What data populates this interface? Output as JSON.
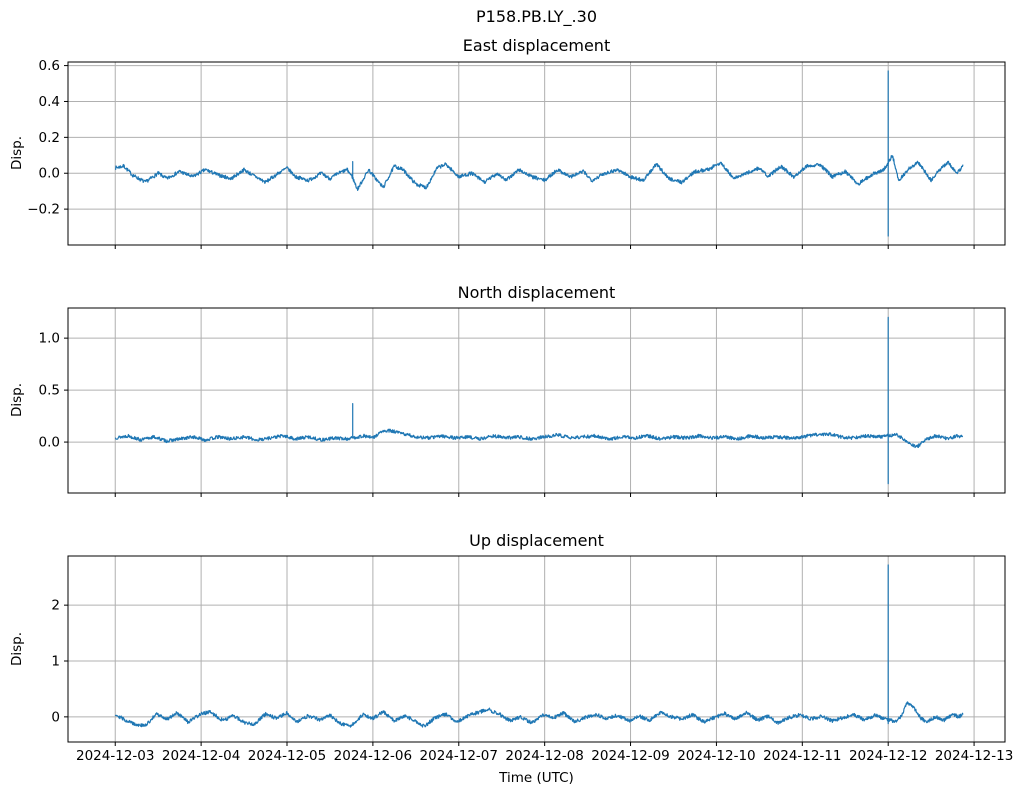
{
  "figure": {
    "title": "P158.PB.LY_.30",
    "background": "#ffffff"
  },
  "x_axis": {
    "label": "Time (UTC)",
    "lim_days": [
      -0.55,
      10.36
    ],
    "ticks": [
      {
        "day": 0,
        "label": "2024-12-03"
      },
      {
        "day": 1,
        "label": "2024-12-04"
      },
      {
        "day": 2,
        "label": "2024-12-05"
      },
      {
        "day": 3,
        "label": "2024-12-06"
      },
      {
        "day": 4,
        "label": "2024-12-07"
      },
      {
        "day": 5,
        "label": "2024-12-08"
      },
      {
        "day": 6,
        "label": "2024-12-09"
      },
      {
        "day": 7,
        "label": "2024-12-10"
      },
      {
        "day": 8,
        "label": "2024-12-11"
      },
      {
        "day": 9,
        "label": "2024-12-12"
      },
      {
        "day": 10,
        "label": "2024-12-13"
      }
    ]
  },
  "style": {
    "line_color": "#1f77b4",
    "grid_color": "#b0b0b0",
    "spine_color": "#000000",
    "line_width": 1.2
  },
  "chart_data": [
    {
      "type": "line",
      "title": "East displacement",
      "ylabel": "Disp.",
      "grid": true,
      "ylim": [
        -0.4,
        0.62
      ],
      "yticks": [
        {
          "v": 0.6,
          "label": "0.6"
        },
        {
          "v": 0.4,
          "label": "0.4"
        },
        {
          "v": 0.2,
          "label": "0.2"
        },
        {
          "v": 0.0,
          "label": "0.0"
        },
        {
          "v": -0.2,
          "label": "−0.2"
        }
      ],
      "t_range": [
        0,
        9.87
      ],
      "noise_amp": 0.01,
      "seed": 7,
      "envelope": [
        [
          0,
          0.03
        ],
        [
          0.1,
          0.04
        ],
        [
          0.2,
          -0.01
        ],
        [
          0.35,
          -0.05
        ],
        [
          0.5,
          0.0
        ],
        [
          0.6,
          -0.03
        ],
        [
          0.75,
          0.01
        ],
        [
          0.9,
          -0.02
        ],
        [
          1.05,
          0.02
        ],
        [
          1.2,
          -0.01
        ],
        [
          1.35,
          -0.03
        ],
        [
          1.5,
          0.02
        ],
        [
          1.6,
          -0.01
        ],
        [
          1.75,
          -0.05
        ],
        [
          1.9,
          0.0
        ],
        [
          2.0,
          0.03
        ],
        [
          2.1,
          -0.02
        ],
        [
          2.25,
          -0.04
        ],
        [
          2.4,
          0.0
        ],
        [
          2.5,
          -0.03
        ],
        [
          2.6,
          0.0
        ],
        [
          2.7,
          0.02
        ],
        [
          2.76,
          -0.02
        ],
        [
          2.82,
          -0.09
        ],
        [
          2.95,
          0.02
        ],
        [
          3.05,
          -0.04
        ],
        [
          3.12,
          -0.08
        ],
        [
          3.25,
          0.04
        ],
        [
          3.35,
          0.02
        ],
        [
          3.5,
          -0.06
        ],
        [
          3.62,
          -0.08
        ],
        [
          3.75,
          0.03
        ],
        [
          3.85,
          0.05
        ],
        [
          4.0,
          -0.02
        ],
        [
          4.15,
          0.0
        ],
        [
          4.3,
          -0.05
        ],
        [
          4.45,
          0.0
        ],
        [
          4.55,
          -0.04
        ],
        [
          4.7,
          0.02
        ],
        [
          4.85,
          -0.02
        ],
        [
          5.0,
          -0.04
        ],
        [
          5.15,
          0.02
        ],
        [
          5.3,
          -0.02
        ],
        [
          5.45,
          0.01
        ],
        [
          5.55,
          -0.04
        ],
        [
          5.7,
          0.0
        ],
        [
          5.85,
          0.02
        ],
        [
          6.0,
          -0.02
        ],
        [
          6.15,
          -0.04
        ],
        [
          6.3,
          0.05
        ],
        [
          6.45,
          -0.03
        ],
        [
          6.6,
          -0.05
        ],
        [
          6.75,
          0.01
        ],
        [
          6.9,
          0.02
        ],
        [
          7.05,
          0.06
        ],
        [
          7.2,
          -0.03
        ],
        [
          7.35,
          0.0
        ],
        [
          7.5,
          0.03
        ],
        [
          7.6,
          -0.02
        ],
        [
          7.75,
          0.04
        ],
        [
          7.9,
          -0.02
        ],
        [
          8.05,
          0.04
        ],
        [
          8.2,
          0.05
        ],
        [
          8.35,
          -0.02
        ],
        [
          8.5,
          0.01
        ],
        [
          8.65,
          -0.06
        ],
        [
          8.8,
          -0.01
        ],
        [
          8.95,
          0.02
        ],
        [
          9.05,
          0.1
        ],
        [
          9.12,
          -0.04
        ],
        [
          9.25,
          0.03
        ],
        [
          9.35,
          0.06
        ],
        [
          9.5,
          -0.04
        ],
        [
          9.6,
          0.02
        ],
        [
          9.7,
          0.06
        ],
        [
          9.8,
          0.0
        ],
        [
          9.87,
          0.04
        ]
      ],
      "spikes": [
        {
          "day": 2.765,
          "peak": 0.065,
          "trough": null
        },
        {
          "day": 9.0,
          "peak": 0.57,
          "trough": -0.35
        }
      ]
    },
    {
      "type": "line",
      "title": "North displacement",
      "ylabel": "Disp.",
      "grid": true,
      "ylim": [
        -0.49,
        1.29
      ],
      "yticks": [
        {
          "v": 1.0,
          "label": "1.0"
        },
        {
          "v": 0.5,
          "label": "0.5"
        },
        {
          "v": 0.0,
          "label": "0.0"
        }
      ],
      "t_range": [
        0,
        9.87
      ],
      "noise_amp": 0.016,
      "seed": 13,
      "envelope": [
        [
          0,
          0.04
        ],
        [
          0.15,
          0.06
        ],
        [
          0.3,
          0.02
        ],
        [
          0.45,
          0.05
        ],
        [
          0.6,
          0.01
        ],
        [
          0.75,
          0.03
        ],
        [
          0.9,
          0.05
        ],
        [
          1.05,
          0.02
        ],
        [
          1.2,
          0.05
        ],
        [
          1.35,
          0.03
        ],
        [
          1.5,
          0.05
        ],
        [
          1.65,
          0.02
        ],
        [
          1.8,
          0.04
        ],
        [
          1.95,
          0.06
        ],
        [
          2.1,
          0.03
        ],
        [
          2.25,
          0.05
        ],
        [
          2.4,
          0.02
        ],
        [
          2.55,
          0.04
        ],
        [
          2.7,
          0.03
        ],
        [
          2.76,
          0.04
        ],
        [
          2.9,
          0.06
        ],
        [
          3.0,
          0.04
        ],
        [
          3.1,
          0.1
        ],
        [
          3.2,
          0.11
        ],
        [
          3.35,
          0.08
        ],
        [
          3.5,
          0.05
        ],
        [
          3.65,
          0.04
        ],
        [
          3.8,
          0.06
        ],
        [
          3.95,
          0.04
        ],
        [
          4.1,
          0.05
        ],
        [
          4.25,
          0.03
        ],
        [
          4.4,
          0.06
        ],
        [
          4.55,
          0.04
        ],
        [
          4.7,
          0.05
        ],
        [
          4.85,
          0.03
        ],
        [
          5.0,
          0.05
        ],
        [
          5.15,
          0.07
        ],
        [
          5.3,
          0.04
        ],
        [
          5.45,
          0.05
        ],
        [
          5.6,
          0.06
        ],
        [
          5.75,
          0.03
        ],
        [
          5.9,
          0.05
        ],
        [
          6.05,
          0.04
        ],
        [
          6.2,
          0.06
        ],
        [
          6.35,
          0.03
        ],
        [
          6.5,
          0.05
        ],
        [
          6.65,
          0.04
        ],
        [
          6.8,
          0.06
        ],
        [
          6.95,
          0.04
        ],
        [
          7.1,
          0.05
        ],
        [
          7.25,
          0.03
        ],
        [
          7.4,
          0.06
        ],
        [
          7.55,
          0.04
        ],
        [
          7.7,
          0.05
        ],
        [
          7.85,
          0.04
        ],
        [
          8.0,
          0.05
        ],
        [
          8.15,
          0.07
        ],
        [
          8.3,
          0.08
        ],
        [
          8.45,
          0.05
        ],
        [
          8.6,
          0.04
        ],
        [
          8.75,
          0.06
        ],
        [
          8.9,
          0.05
        ],
        [
          9.0,
          0.06
        ],
        [
          9.1,
          0.07
        ],
        [
          9.2,
          0.02
        ],
        [
          9.33,
          -0.05
        ],
        [
          9.45,
          0.03
        ],
        [
          9.55,
          0.06
        ],
        [
          9.7,
          0.03
        ],
        [
          9.8,
          0.06
        ],
        [
          9.87,
          0.05
        ]
      ],
      "spikes": [
        {
          "day": 2.765,
          "peak": 0.37,
          "trough": null
        },
        {
          "day": 9.0,
          "peak": 1.2,
          "trough": -0.4
        }
      ]
    },
    {
      "type": "line",
      "title": "Up displacement",
      "ylabel": "Disp.",
      "grid": true,
      "ylim": [
        -0.45,
        2.88
      ],
      "yticks": [
        {
          "v": 2,
          "label": "2"
        },
        {
          "v": 1,
          "label": "1"
        },
        {
          "v": 0,
          "label": "0"
        }
      ],
      "t_range": [
        0,
        9.87
      ],
      "noise_amp": 0.032,
      "seed": 29,
      "envelope": [
        [
          0,
          0.05
        ],
        [
          0.12,
          -0.06
        ],
        [
          0.25,
          -0.14
        ],
        [
          0.35,
          -0.16
        ],
        [
          0.48,
          0.05
        ],
        [
          0.6,
          -0.04
        ],
        [
          0.72,
          0.07
        ],
        [
          0.85,
          -0.1
        ],
        [
          0.98,
          0.04
        ],
        [
          1.1,
          0.09
        ],
        [
          1.25,
          -0.06
        ],
        [
          1.38,
          0.02
        ],
        [
          1.5,
          -0.1
        ],
        [
          1.62,
          -0.13
        ],
        [
          1.75,
          0.05
        ],
        [
          1.88,
          -0.03
        ],
        [
          2.0,
          0.07
        ],
        [
          2.12,
          -0.09
        ],
        [
          2.25,
          0.02
        ],
        [
          2.38,
          -0.05
        ],
        [
          2.5,
          0.03
        ],
        [
          2.62,
          -0.12
        ],
        [
          2.75,
          -0.16
        ],
        [
          2.88,
          0.04
        ],
        [
          3.0,
          -0.03
        ],
        [
          3.12,
          0.09
        ],
        [
          3.25,
          -0.07
        ],
        [
          3.38,
          0.02
        ],
        [
          3.5,
          -0.09
        ],
        [
          3.6,
          -0.17
        ],
        [
          3.72,
          -0.02
        ],
        [
          3.85,
          0.05
        ],
        [
          3.98,
          -0.09
        ],
        [
          4.1,
          0.01
        ],
        [
          4.22,
          0.08
        ],
        [
          4.35,
          0.13
        ],
        [
          4.48,
          0.04
        ],
        [
          4.6,
          -0.07
        ],
        [
          4.72,
          0.0
        ],
        [
          4.85,
          -0.11
        ],
        [
          4.98,
          0.03
        ],
        [
          5.1,
          -0.02
        ],
        [
          5.22,
          0.07
        ],
        [
          5.35,
          -0.09
        ],
        [
          5.48,
          -0.01
        ],
        [
          5.6,
          0.05
        ],
        [
          5.72,
          -0.04
        ],
        [
          5.85,
          0.03
        ],
        [
          5.98,
          -0.07
        ],
        [
          6.1,
          0.01
        ],
        [
          6.22,
          -0.06
        ],
        [
          6.35,
          0.08
        ],
        [
          6.48,
          0.0
        ],
        [
          6.6,
          -0.04
        ],
        [
          6.72,
          0.04
        ],
        [
          6.85,
          -0.09
        ],
        [
          6.98,
          -0.01
        ],
        [
          7.1,
          0.06
        ],
        [
          7.22,
          -0.04
        ],
        [
          7.35,
          0.07
        ],
        [
          7.48,
          -0.06
        ],
        [
          7.6,
          0.01
        ],
        [
          7.72,
          -0.11
        ],
        [
          7.85,
          -0.01
        ],
        [
          7.98,
          0.04
        ],
        [
          8.1,
          -0.04
        ],
        [
          8.22,
          0.01
        ],
        [
          8.35,
          -0.07
        ],
        [
          8.48,
          -0.01
        ],
        [
          8.6,
          0.04
        ],
        [
          8.72,
          -0.05
        ],
        [
          8.85,
          0.03
        ],
        [
          8.95,
          -0.03
        ],
        [
          9.0,
          -0.05
        ],
        [
          9.08,
          -0.08
        ],
        [
          9.15,
          0.0
        ],
        [
          9.22,
          0.24
        ],
        [
          9.28,
          0.2
        ],
        [
          9.38,
          -0.02
        ],
        [
          9.45,
          -0.1
        ],
        [
          9.55,
          0.0
        ],
        [
          9.65,
          -0.06
        ],
        [
          9.75,
          0.05
        ],
        [
          9.82,
          0.0
        ],
        [
          9.87,
          0.04
        ]
      ],
      "spikes": [
        {
          "day": 9.0,
          "peak": 2.72,
          "trough": -0.12
        }
      ]
    }
  ]
}
